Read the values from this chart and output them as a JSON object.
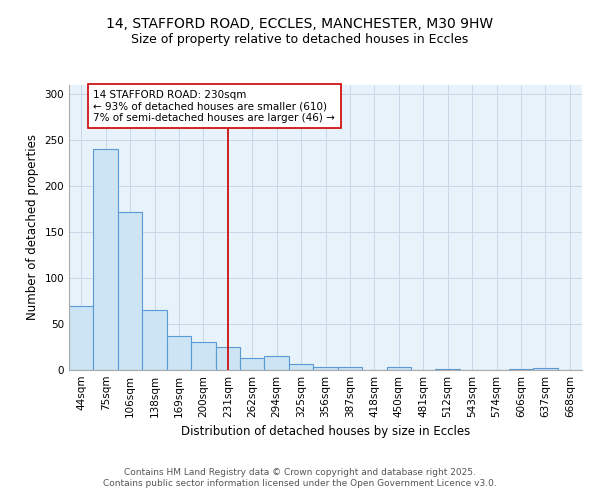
{
  "title_line1": "14, STAFFORD ROAD, ECCLES, MANCHESTER, M30 9HW",
  "title_line2": "Size of property relative to detached houses in Eccles",
  "xlabel": "Distribution of detached houses by size in Eccles",
  "ylabel": "Number of detached properties",
  "categories": [
    "44sqm",
    "75sqm",
    "106sqm",
    "138sqm",
    "169sqm",
    "200sqm",
    "231sqm",
    "262sqm",
    "294sqm",
    "325sqm",
    "356sqm",
    "387sqm",
    "418sqm",
    "450sqm",
    "481sqm",
    "512sqm",
    "543sqm",
    "574sqm",
    "606sqm",
    "637sqm",
    "668sqm"
  ],
  "bar_heights": [
    70,
    240,
    172,
    65,
    37,
    30,
    25,
    13,
    15,
    7,
    3,
    3,
    0,
    3,
    0,
    1,
    0,
    0,
    1,
    2,
    0
  ],
  "bar_color": "#cce4f4",
  "bar_edge_color": "#5b9bd5",
  "bar_edge_width": 0.8,
  "vline_x": 6,
  "vline_color": "#cc0000",
  "vline_lw": 1.2,
  "annotation_text": "14 STAFFORD ROAD: 230sqm\n← 93% of detached houses are smaller (610)\n7% of semi-detached houses are larger (46) →",
  "annotation_box_color": "white",
  "annotation_box_edge": "#cc0000",
  "annotation_fontsize": 7.5,
  "ylim": [
    0,
    310
  ],
  "yticks": [
    0,
    50,
    100,
    150,
    200,
    250,
    300
  ],
  "grid_color": "#c8d8e8",
  "background_color": "#e8f2fa",
  "footer": "Contains HM Land Registry data © Crown copyright and database right 2025.\nContains public sector information licensed under the Open Government Licence v3.0.",
  "title_fontsize": 10,
  "subtitle_fontsize": 9,
  "axis_label_fontsize": 8.5,
  "tick_fontsize": 7.5,
  "footer_fontsize": 6.5
}
